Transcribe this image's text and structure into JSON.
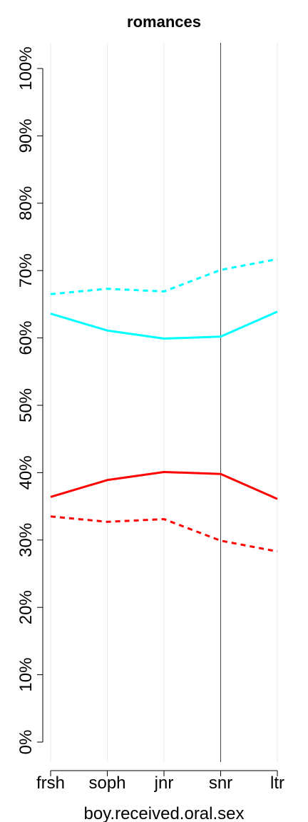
{
  "chart_data": {
    "type": "line",
    "title": "romances",
    "xlabel": "boy.received.oral.sex",
    "ylabel": "",
    "categories": [
      "frsh",
      "soph",
      "jnr",
      "snr",
      "ltr"
    ],
    "ylim": [
      0,
      100
    ],
    "y_ticks": [
      "0%",
      "10%",
      "20%",
      "30%",
      "40%",
      "50%",
      "60%",
      "70%",
      "80%",
      "90%",
      "100%"
    ],
    "reference_line_category": "snr",
    "grid": "vertical",
    "series": [
      {
        "color": "#00FFFF",
        "style": "dashed",
        "values": [
          66.5,
          67.3,
          66.9,
          70.1,
          71.7
        ]
      },
      {
        "color": "#00FFFF",
        "style": "solid",
        "values": [
          63.6,
          61.1,
          59.9,
          60.2,
          63.9
        ]
      },
      {
        "color": "#FF0000",
        "style": "solid",
        "values": [
          36.4,
          38.9,
          40.1,
          39.8,
          36.1
        ]
      },
      {
        "color": "#FF0000",
        "style": "dashed",
        "values": [
          33.5,
          32.7,
          33.1,
          29.9,
          28.3
        ]
      }
    ]
  }
}
